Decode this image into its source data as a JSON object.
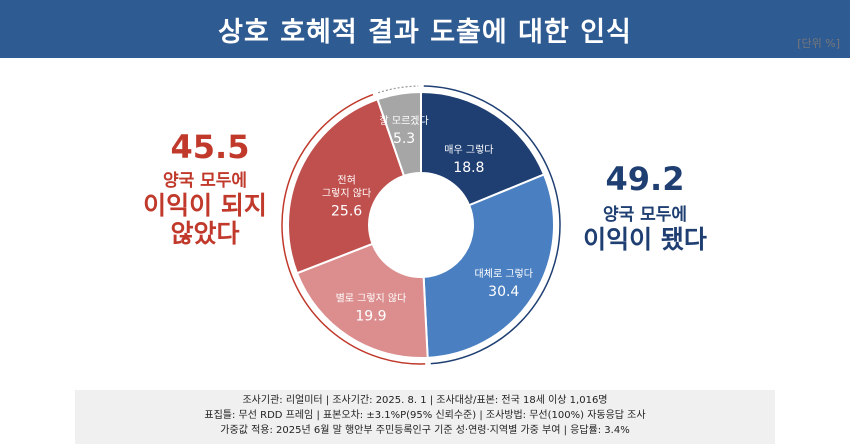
{
  "header": {
    "title": "상호 호혜적 결과 도출에 대한 인식",
    "unit": "[단위 %]"
  },
  "colors": {
    "header_bg": "#2f5b93",
    "very_yes": "#1f3f73",
    "mostly_yes": "#4a7fc1",
    "mostly_no": "#dc8e8e",
    "none_at_all": "#c0504d",
    "dont_know": "#a6a6a6",
    "positive_text": "#1f3f73",
    "negative_text": "#c0392b"
  },
  "summary": {
    "negative_total": "45.5",
    "negative_caption_line1": "양국 모두에",
    "negative_caption_line2": "이익이 되지",
    "negative_caption_line3": "않았다",
    "positive_total": "49.2",
    "positive_caption_line1": "양국 모두에",
    "positive_caption_line2": "이익이 됐다"
  },
  "chart_data": {
    "type": "pie",
    "donut": true,
    "start": "top, clockwise",
    "slices": [
      {
        "label": "매우 그렇다",
        "value": 18.8,
        "color": "#1f3f73",
        "text_color": "#ffffff"
      },
      {
        "label": "대체로 그렇다",
        "value": 30.4,
        "color": "#4a7fc1",
        "text_color": "#ffffff"
      },
      {
        "label": "별로 그렇지 않다",
        "value": 19.9,
        "color": "#dc8e8e",
        "text_color": "#ffffff"
      },
      {
        "label_lines": [
          "전혀",
          "그렇지 않다"
        ],
        "value": 25.6,
        "color": "#c0504d",
        "text_color": "#ffffff"
      },
      {
        "label": "잘 모르겠다",
        "value": 5.3,
        "color": "#a6a6a6",
        "text_color": "#ffffff"
      }
    ]
  },
  "footer": {
    "line1": "조사기관: 리얼미터  |  조사기간: 2025. 8. 1 | 조사대상/표본: 전국 18세 이상 1,016명",
    "line2": "표집틀: 무선 RDD 프레임 | 표본오차: ±3.1%P(95% 신뢰수준) | 조사방법: 무선(100%) 자동응답 조사",
    "line3": "가중값 적용: 2025년 6월 말 행안부 주민등록인구 기준 성·연령·지역별 가중 부여 | 응답률: 3.4%"
  }
}
